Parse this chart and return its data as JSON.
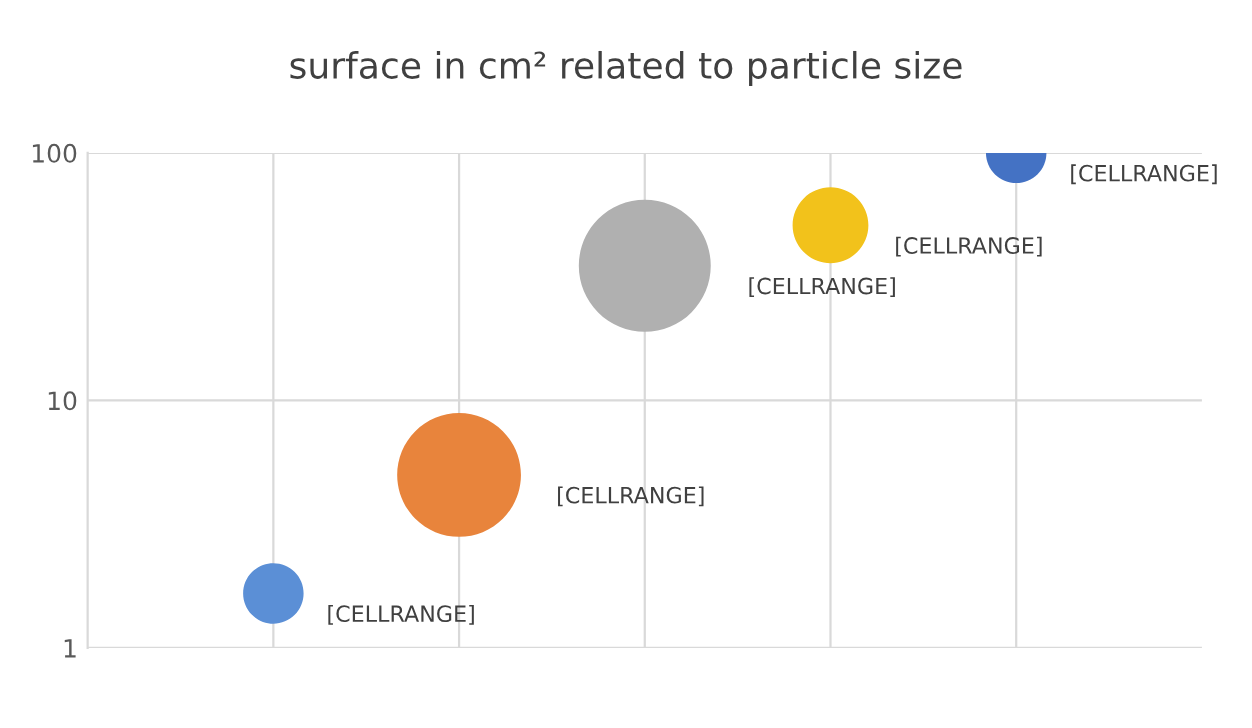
{
  "chart_data": {
    "type": "bubble",
    "title": "surface in cm² related to particle size",
    "categories": [
      null,
      null,
      null,
      null,
      null
    ],
    "values": [
      1.66,
      5,
      35,
      51,
      100
    ],
    "sizes": [
      0.21,
      0.88,
      1,
      0.33,
      0.21
    ],
    "colors": [
      "#5b8fd6",
      "#e8843c",
      "#b0b0b0",
      "#f2c21b",
      "#4472c4"
    ],
    "value_labels": [
      "[CELLRANGE]",
      "[CELLRANGE]",
      "[CELLRANGE]",
      "[CELLRANGE]",
      "[CELLRANGE]"
    ],
    "log": "y",
    "ylim": [
      1,
      100
    ],
    "yticks": [
      1,
      10,
      100
    ],
    "grid": true
  }
}
